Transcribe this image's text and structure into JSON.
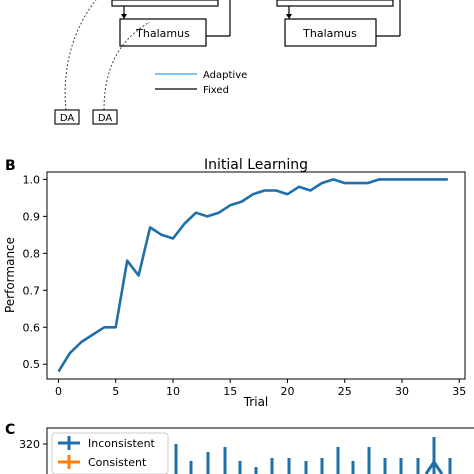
{
  "panel_a": {
    "thalamus_left": "Thalamus",
    "thalamus_right": "Thalamus",
    "legend": [
      {
        "label": "Adaptive",
        "color": "#5ab4e5"
      },
      {
        "label": "Fixed",
        "color": "#000000"
      }
    ],
    "da_left": "DA",
    "da_right": "DA"
  },
  "panel_b_label": "B",
  "panel_c_label": "C",
  "chart_data": [
    {
      "type": "line",
      "title": "Initial Learning",
      "xlabel": "Trial",
      "ylabel": "Performance",
      "xlim": [
        -1,
        35.5
      ],
      "ylim": [
        0.46,
        1.02
      ],
      "xticks": [
        0,
        5,
        10,
        15,
        20,
        25,
        30,
        35
      ],
      "yticks": [
        0.5,
        0.6,
        0.7,
        0.8,
        0.9,
        1.0
      ],
      "yticklabels": [
        "0.5",
        "0.6",
        "0.7",
        "0.8",
        "0.9",
        "1.0"
      ],
      "grid": false,
      "series": [
        {
          "color": "#1f6fa8",
          "x": [
            0,
            1,
            2,
            3,
            4,
            5,
            6,
            7,
            8,
            9,
            10,
            11,
            12,
            13,
            14,
            15,
            16,
            17,
            18,
            19,
            20,
            21,
            22,
            23,
            24,
            25,
            26,
            27,
            28,
            29,
            30,
            31,
            32,
            33,
            34
          ],
          "y": [
            0.48,
            0.53,
            0.56,
            0.58,
            0.6,
            0.6,
            0.78,
            0.74,
            0.87,
            0.85,
            0.84,
            0.88,
            0.91,
            0.9,
            0.91,
            0.93,
            0.94,
            0.96,
            0.97,
            0.97,
            0.96,
            0.98,
            0.97,
            0.99,
            1.0,
            0.99,
            0.99,
            0.99,
            1.0,
            1.0,
            1.0,
            1.0,
            1.0,
            1.0,
            1.0
          ]
        }
      ]
    },
    {
      "type": "bar",
      "ytick_visible": "320",
      "legend_placement": "top-left",
      "series": [
        {
          "name": "Inconsistent",
          "color": "#1f6fa8"
        },
        {
          "name": "Consistent",
          "color": "#ff7f0e"
        }
      ]
    }
  ]
}
